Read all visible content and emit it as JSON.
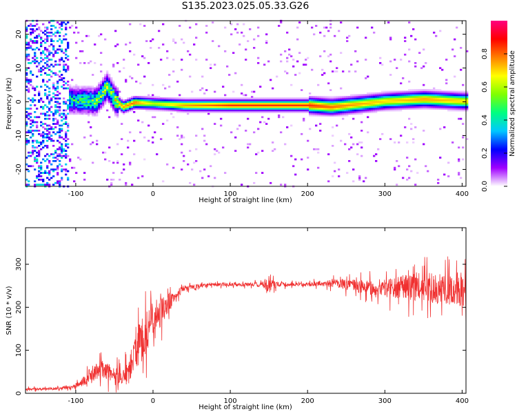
{
  "title": "S135.2023.025.05.33.G26",
  "chart_data": [
    {
      "type": "heatmap",
      "xlabel": "Height of straight line (km)",
      "ylabel": "Frequency (Hz)",
      "xlim": [
        -165,
        405
      ],
      "ylim": [
        -25,
        24
      ],
      "xticks": [
        "-100",
        "0",
        "100",
        "200",
        "300",
        "400"
      ],
      "yticks": [
        "20",
        "10",
        "0",
        "-10",
        "-20"
      ],
      "colorbar": {
        "label": "Normalized spectral amplitude",
        "range": [
          0.0,
          1.0
        ],
        "ticks": [
          "0.0",
          "0.2",
          "0.4",
          "0.6",
          "0.8"
        ],
        "colors": [
          "#ffffff",
          "#a000ff",
          "#0000ff",
          "#00c8ff",
          "#00ff80",
          "#80ff00",
          "#ffff00",
          "#ff8000",
          "#ff0000",
          "#ff0080"
        ]
      },
      "ridge": {
        "x": [
          -100,
          -75,
          -60,
          -50,
          -40,
          -25,
          0,
          40,
          100,
          200,
          230,
          260,
          300,
          350,
          400
        ],
        "frequency": [
          0.5,
          0.2,
          4.5,
          0.5,
          -1.5,
          -0.2,
          -0.5,
          -1.0,
          -1.0,
          -1.0,
          -1.5,
          -0.8,
          0.2,
          0.8,
          0.2
        ],
        "amplitude": [
          0.5,
          0.6,
          0.65,
          0.7,
          0.75,
          0.8,
          0.6,
          0.75,
          0.85,
          0.85,
          0.8,
          0.75,
          0.7,
          0.75,
          0.7
        ]
      }
    },
    {
      "type": "line",
      "xlabel": "Height of straight line (km)",
      "ylabel": "SNR (10 * v/v)",
      "xlim": [
        -165,
        405
      ],
      "ylim": [
        0,
        385
      ],
      "xticks": [
        "-100",
        "0",
        "100",
        "200",
        "300",
        "400"
      ],
      "yticks": [
        "0",
        "100",
        "200",
        "300"
      ],
      "color": "#f03030",
      "series": [
        {
          "x": [
            -165,
            -140,
            -120,
            -105,
            -95,
            -80,
            -65,
            -50,
            -40,
            -30,
            -20,
            -10,
            0,
            10,
            20,
            30,
            40,
            60,
            80,
            100,
            120,
            140,
            150,
            160,
            180,
            200,
            220,
            240,
            260,
            280,
            300,
            320,
            340,
            360,
            380,
            405
          ],
          "y": [
            10,
            10,
            12,
            14,
            20,
            45,
            55,
            40,
            30,
            55,
            110,
            140,
            170,
            190,
            210,
            230,
            245,
            250,
            253,
            253,
            253,
            253,
            250,
            253,
            253,
            253,
            255,
            255,
            250,
            245,
            245,
            245,
            250,
            245,
            240,
            240
          ],
          "spread": [
            4,
            4,
            5,
            6,
            12,
            25,
            30,
            30,
            30,
            50,
            70,
            70,
            60,
            50,
            35,
            20,
            10,
            6,
            6,
            6,
            6,
            8,
            25,
            8,
            6,
            6,
            10,
            14,
            20,
            25,
            30,
            40,
            50,
            50,
            50,
            55
          ]
        }
      ]
    }
  ]
}
